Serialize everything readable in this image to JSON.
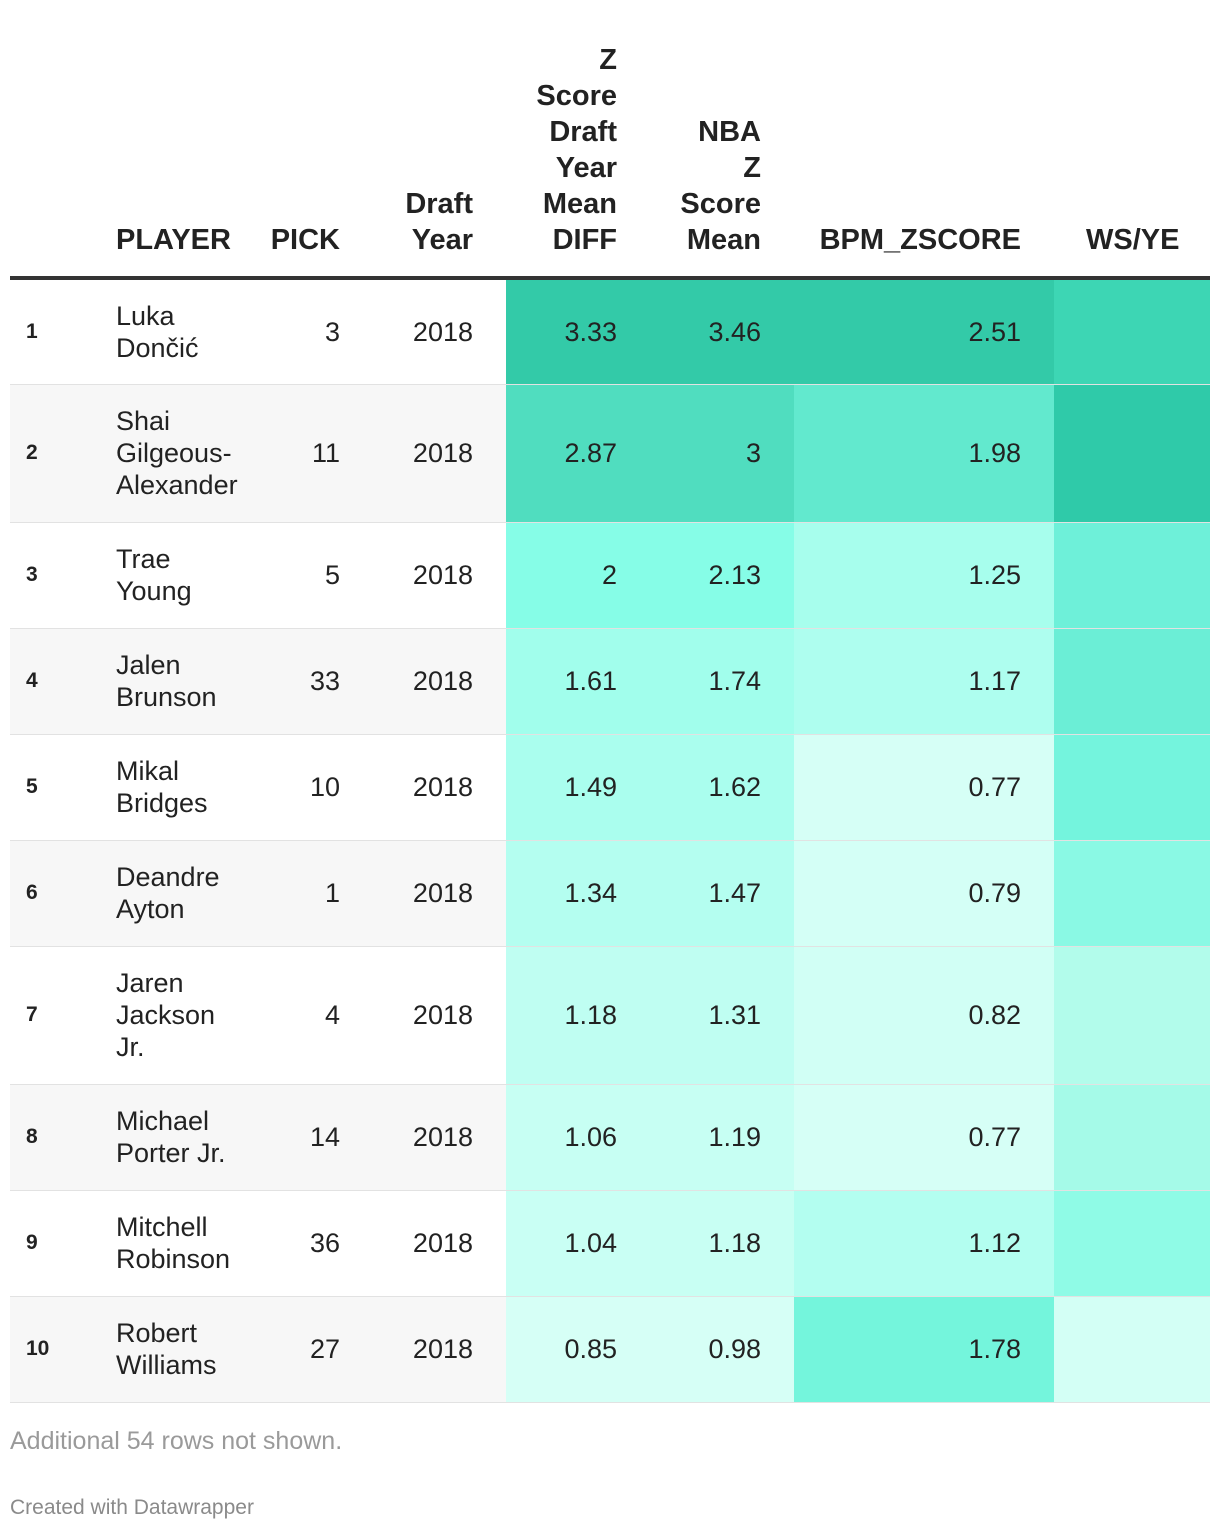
{
  "chart_data": {
    "type": "table",
    "columns": [
      "",
      "PLAYER",
      "PICK",
      "Draft Year",
      "Z Score Draft Year Mean DIFF",
      "NBA Z Score Mean",
      "BPM_ZSCORE",
      "WS/YE"
    ],
    "header_lines": {
      "z_score": [
        "Z",
        "Score",
        "Draft",
        "Year",
        "Mean",
        "DIFF"
      ],
      "nba_z": [
        "NBA",
        "Z",
        "Score",
        "Mean"
      ],
      "draft_year": [
        "Draft",
        "Year"
      ]
    },
    "rows": [
      {
        "rank": "1",
        "player_lines": [
          "Luka",
          "Dončić"
        ],
        "pick": "3",
        "year": "2018",
        "z_diff": "3.33",
        "nba_z": "3.46",
        "bpm": "2.51"
      },
      {
        "rank": "2",
        "player_lines": [
          "Shai",
          "Gilgeous-",
          "Alexander"
        ],
        "pick": "11",
        "year": "2018",
        "z_diff": "2.87",
        "nba_z": "3",
        "bpm": "1.98"
      },
      {
        "rank": "3",
        "player_lines": [
          "Trae",
          "Young"
        ],
        "pick": "5",
        "year": "2018",
        "z_diff": "2",
        "nba_z": "2.13",
        "bpm": "1.25"
      },
      {
        "rank": "4",
        "player_lines": [
          "Jalen",
          "Brunson"
        ],
        "pick": "33",
        "year": "2018",
        "z_diff": "1.61",
        "nba_z": "1.74",
        "bpm": "1.17"
      },
      {
        "rank": "5",
        "player_lines": [
          "Mikal",
          "Bridges"
        ],
        "pick": "10",
        "year": "2018",
        "z_diff": "1.49",
        "nba_z": "1.62",
        "bpm": "0.77"
      },
      {
        "rank": "6",
        "player_lines": [
          "Deandre",
          "Ayton"
        ],
        "pick": "1",
        "year": "2018",
        "z_diff": "1.34",
        "nba_z": "1.47",
        "bpm": "0.79"
      },
      {
        "rank": "7",
        "player_lines": [
          "Jaren",
          "Jackson",
          "Jr."
        ],
        "pick": "4",
        "year": "2018",
        "z_diff": "1.18",
        "nba_z": "1.31",
        "bpm": "0.82"
      },
      {
        "rank": "8",
        "player_lines": [
          "Michael",
          "Porter Jr."
        ],
        "pick": "14",
        "year": "2018",
        "z_diff": "1.06",
        "nba_z": "1.19",
        "bpm": "0.77"
      },
      {
        "rank": "9",
        "player_lines": [
          "Mitchell",
          "Robinson"
        ],
        "pick": "36",
        "year": "2018",
        "z_diff": "1.04",
        "nba_z": "1.18",
        "bpm": "1.12"
      },
      {
        "rank": "10",
        "player_lines": [
          "Robert",
          "Williams"
        ],
        "pick": "27",
        "year": "2018",
        "z_diff": "0.85",
        "nba_z": "0.98",
        "bpm": "1.78"
      }
    ],
    "ws_colors": [
      "#3dd6b4",
      "#2fcaa9",
      "#6ef0d9",
      "#6beed6",
      "#74f4dd",
      "#8af9e4",
      "#b2fceb",
      "#a5fae8",
      "#8ffbe6",
      "#d3fff5"
    ],
    "heat_color_scale": {
      "low": "#d6fff6",
      "mid": "#80fde6",
      "high": "#33caa8"
    }
  },
  "footer": {
    "note": "Additional 54 rows not shown.",
    "credit": "Created with Datawrapper"
  }
}
